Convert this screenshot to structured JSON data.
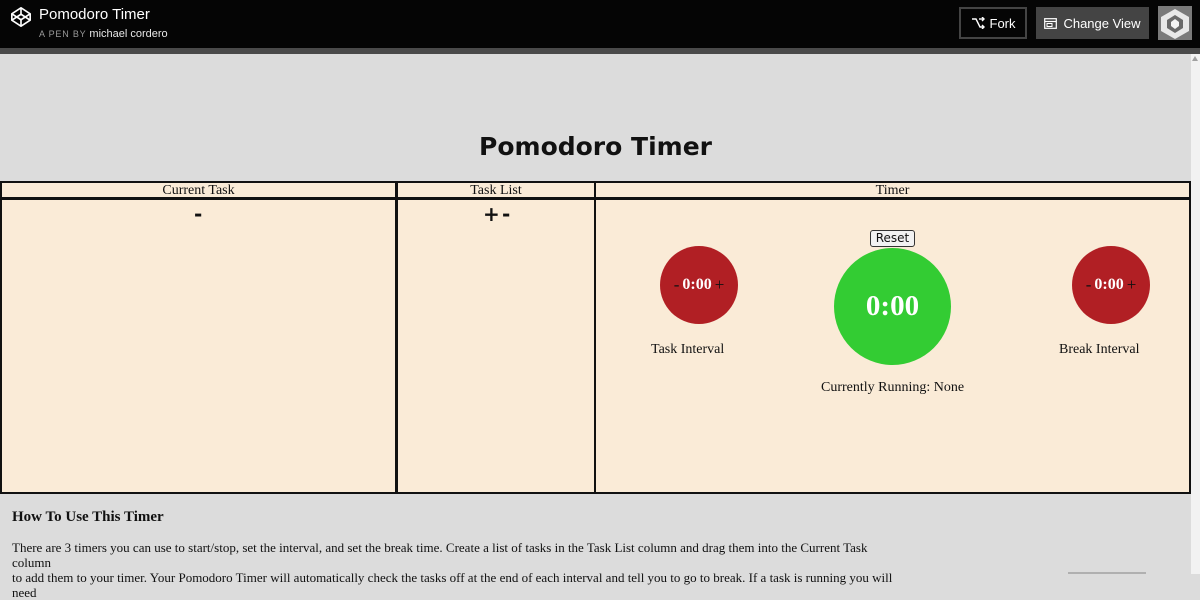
{
  "topbar": {
    "pen_title": "Pomodoro Timer",
    "pen_by": "A PEN BY",
    "author": "michael cordero",
    "fork_label": "Fork",
    "change_view_label": "Change View",
    "icons": [
      "codepen-logo-icon",
      "fork-icon",
      "change-view-icon",
      "avatar"
    ]
  },
  "page": {
    "title": "Pomodoro Timer"
  },
  "columns": {
    "current_task": {
      "header": "Current Task",
      "minus": "-"
    },
    "task_list": {
      "header": "Task List",
      "plus": "+",
      "minus": "-"
    },
    "timer": {
      "header": "Timer",
      "reset_label": "Reset",
      "main_time": "0:00",
      "task_interval": {
        "minus": "-",
        "value": "0:00",
        "plus": "+",
        "label": "Task Interval"
      },
      "break_interval": {
        "minus": "-",
        "value": "0:00",
        "plus": "+",
        "label": "Break Interval"
      },
      "currently_running": "Currently Running: None"
    }
  },
  "howto": {
    "title": "How To Use This Timer",
    "text_line1": "There are 3 timers you can use to start/stop, set the interval, and set the break time. Create a list of tasks in the Task List column and drag them into the Current Task column",
    "text_line2": "to add them to your timer. Your Pomodoro Timer will automatically check the tasks off at the end of each interval and tell you to go to break. If a task is running you will need"
  },
  "colors": {
    "topbar": "#050505",
    "cell_background": "#faebd7",
    "interval_circle": "#b11f24",
    "main_timer_circle": "#33cc33",
    "page_background": "#dcdcdc"
  }
}
